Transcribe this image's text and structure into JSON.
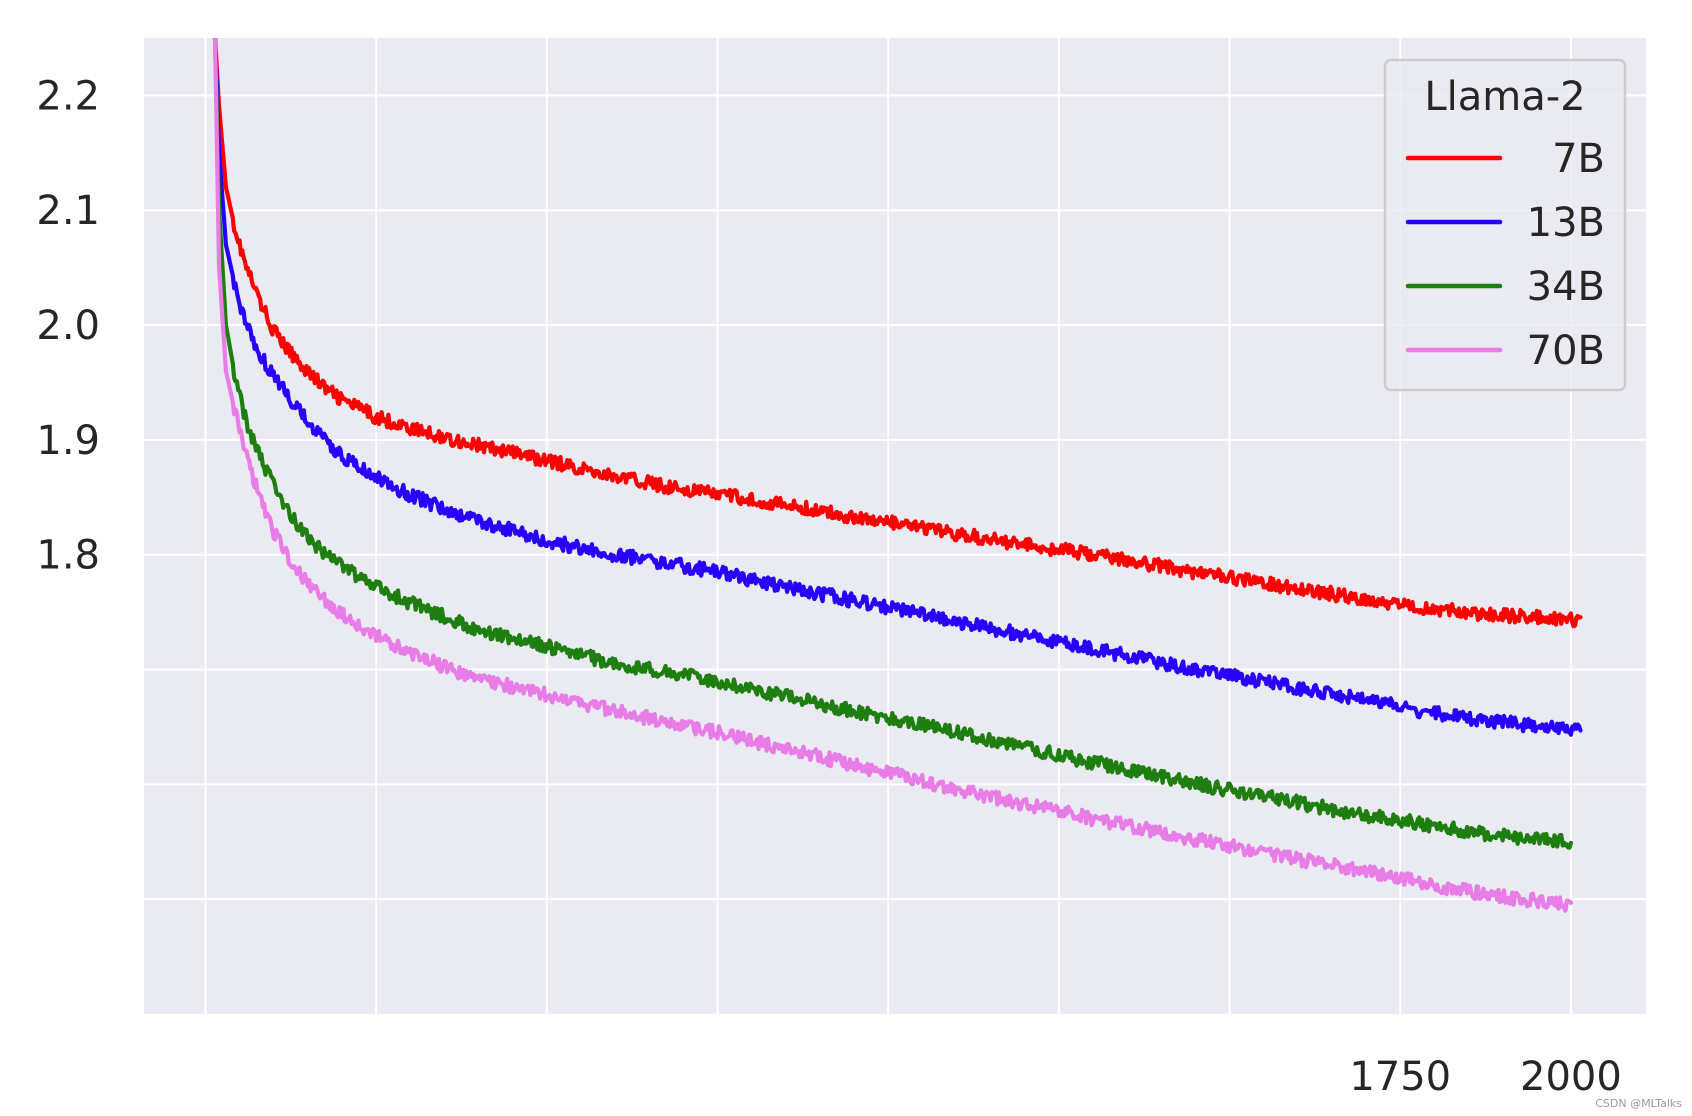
{
  "chart_data": {
    "type": "line",
    "title": "",
    "xlabel": "",
    "ylabel": "",
    "xlim": [
      -90,
      2110
    ],
    "ylim": [
      1.4,
      2.25
    ],
    "grid": true,
    "x_gridlines": [
      0,
      250,
      500,
      750,
      1000,
      1250,
      1500,
      1750,
      2000
    ],
    "y_gridlines": [
      1.5,
      1.6,
      1.7,
      1.8,
      1.9,
      2.0,
      2.1,
      2.2
    ],
    "x_ticks": [
      {
        "value": 1750,
        "label": "1750"
      },
      {
        "value": 2000,
        "label": "2000"
      }
    ],
    "y_ticks": [
      {
        "value": 1.8,
        "label": "1.8"
      },
      {
        "value": 1.9,
        "label": "1.9"
      },
      {
        "value": 2.0,
        "label": "2.0"
      },
      {
        "value": 2.1,
        "label": "2.1"
      },
      {
        "value": 2.2,
        "label": "2.2"
      }
    ],
    "legend": {
      "title": "Llama-2",
      "position": "top-right"
    },
    "series": [
      {
        "name": "7B",
        "color": "#ff0000",
        "x": [
          14,
          20,
          30,
          45,
          60,
          80,
          100,
          125,
          150,
          175,
          200,
          250,
          300,
          350,
          400,
          500,
          600,
          700,
          750,
          800,
          900,
          1000,
          1100,
          1200,
          1300,
          1400,
          1500,
          1600,
          1700,
          1800,
          1900,
          2015
        ],
        "y": [
          2.25,
          2.19,
          2.12,
          2.08,
          2.05,
          2.02,
          1.995,
          1.975,
          1.96,
          1.945,
          1.935,
          1.92,
          1.91,
          1.902,
          1.895,
          1.882,
          1.868,
          1.857,
          1.853,
          1.848,
          1.838,
          1.828,
          1.818,
          1.809,
          1.8,
          1.79,
          1.78,
          1.771,
          1.761,
          1.753,
          1.747,
          1.743
        ]
      },
      {
        "name": "13B",
        "color": "#2800ff",
        "x": [
          14,
          20,
          30,
          45,
          60,
          80,
          100,
          125,
          150,
          175,
          200,
          250,
          300,
          350,
          400,
          500,
          600,
          700,
          750,
          800,
          900,
          1000,
          1100,
          1200,
          1300,
          1400,
          1500,
          1600,
          1700,
          1800,
          1900,
          2015
        ],
        "y": [
          2.25,
          2.15,
          2.07,
          2.03,
          2.0,
          1.975,
          1.955,
          1.935,
          1.915,
          1.9,
          1.885,
          1.867,
          1.852,
          1.84,
          1.83,
          1.812,
          1.8,
          1.79,
          1.785,
          1.778,
          1.766,
          1.754,
          1.742,
          1.73,
          1.718,
          1.706,
          1.695,
          1.684,
          1.673,
          1.662,
          1.654,
          1.646
        ]
      },
      {
        "name": "34B",
        "color": "#1e7e0f",
        "x": [
          14,
          20,
          30,
          45,
          60,
          80,
          100,
          125,
          150,
          175,
          200,
          250,
          300,
          350,
          400,
          500,
          600,
          700,
          750,
          800,
          900,
          1000,
          1100,
          1200,
          1300,
          1400,
          1500,
          1600,
          1700,
          1800,
          1900,
          2000
        ],
        "y": [
          2.25,
          2.1,
          2.0,
          1.95,
          1.915,
          1.885,
          1.86,
          1.835,
          1.815,
          1.8,
          1.79,
          1.772,
          1.758,
          1.746,
          1.735,
          1.72,
          1.705,
          1.695,
          1.69,
          1.683,
          1.67,
          1.658,
          1.645,
          1.632,
          1.619,
          1.607,
          1.595,
          1.584,
          1.573,
          1.564,
          1.555,
          1.55
        ]
      },
      {
        "name": "70B",
        "color": "#e87de8",
        "x": [
          14,
          20,
          30,
          45,
          60,
          80,
          100,
          125,
          150,
          175,
          200,
          250,
          300,
          350,
          400,
          500,
          600,
          700,
          750,
          800,
          900,
          1000,
          1100,
          1200,
          1300,
          1400,
          1500,
          1600,
          1700,
          1800,
          1900,
          2000
        ],
        "y": [
          2.25,
          2.05,
          1.96,
          1.92,
          1.885,
          1.85,
          1.82,
          1.795,
          1.775,
          1.76,
          1.748,
          1.73,
          1.715,
          1.702,
          1.692,
          1.678,
          1.664,
          1.651,
          1.645,
          1.638,
          1.624,
          1.61,
          1.596,
          1.583,
          1.57,
          1.558,
          1.546,
          1.535,
          1.524,
          1.512,
          1.502,
          1.495
        ]
      }
    ]
  },
  "watermark": "CSDN @MLTalks"
}
